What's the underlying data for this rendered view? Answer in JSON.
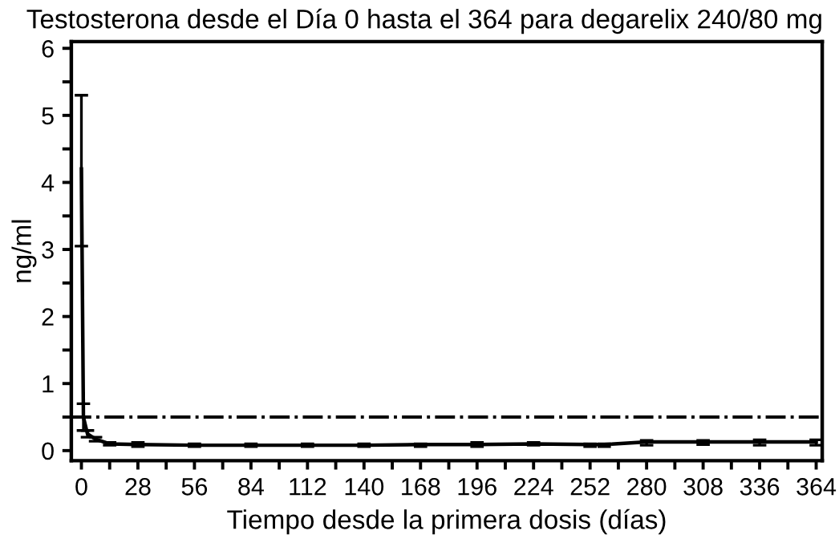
{
  "chart_data": {
    "type": "line",
    "title": "Testosterona desde el Día 0 hasta el 364 para degarelix 240/80 mg",
    "xlabel": "Tiempo desde la primera dosis (días)",
    "ylabel": "ng/ml",
    "x": [
      0,
      1,
      3,
      7,
      14,
      28,
      56,
      84,
      112,
      140,
      168,
      196,
      224,
      252,
      259,
      280,
      308,
      336,
      364
    ],
    "series": [
      {
        "color": "#000000",
        "values": [
          4.2,
          0.5,
          0.25,
          0.17,
          0.1,
          0.09,
          0.08,
          0.08,
          0.08,
          0.08,
          0.09,
          0.09,
          0.1,
          0.09,
          0.09,
          0.13,
          0.13,
          0.13,
          0.13
        ],
        "errors": [
          [
            3.05,
            5.3
          ],
          [
            0.3,
            0.7
          ],
          [
            0.2,
            0.3
          ],
          [
            0.14,
            0.2
          ],
          [
            0.08,
            0.12
          ],
          [
            0.06,
            0.12
          ],
          [
            0.06,
            0.1
          ],
          [
            0.06,
            0.1
          ],
          [
            0.06,
            0.1
          ],
          [
            0.06,
            0.1
          ],
          [
            0.06,
            0.1
          ],
          [
            0.06,
            0.12
          ],
          [
            0.08,
            0.12
          ],
          [
            0.06,
            0.1
          ],
          [
            0.06,
            0.1
          ],
          [
            0.08,
            0.15
          ],
          [
            0.09,
            0.15
          ],
          [
            0.08,
            0.16
          ],
          [
            0.08,
            0.16
          ]
        ]
      }
    ],
    "xlim": [
      -5,
      367
    ],
    "ylim": [
      -0.15,
      6.1
    ],
    "xticks": [
      0,
      {
        "value": 14,
        "label": null
      },
      28,
      {
        "value": 42,
        "label": null
      },
      56,
      {
        "value": 70,
        "label": null
      },
      84,
      {
        "value": 98,
        "label": null
      },
      112,
      {
        "value": 126,
        "label": null
      },
      140,
      {
        "value": 154,
        "label": null
      },
      168,
      {
        "value": 182,
        "label": null
      },
      196,
      {
        "value": 210,
        "label": null
      },
      224,
      {
        "value": 238,
        "label": null
      },
      252,
      {
        "value": 266,
        "label": null
      },
      280,
      {
        "value": 294,
        "label": null
      },
      308,
      {
        "value": 322,
        "label": null
      },
      336,
      {
        "value": 350,
        "label": null
      },
      364
    ],
    "yticks": [
      0,
      {
        "value": 0.5,
        "label": null
      },
      1,
      {
        "value": 1.5,
        "label": null
      },
      2,
      {
        "value": 2.5,
        "label": null
      },
      3,
      {
        "value": 3.5,
        "label": null
      },
      4,
      {
        "value": 4.5,
        "label": null
      },
      5,
      {
        "value": 5.5,
        "label": null
      },
      6
    ],
    "ref_lines": [
      {
        "axis": "y",
        "value": 0.5,
        "color": "#000000",
        "line_style": "dashdot"
      }
    ],
    "grid": false,
    "marker": "none",
    "line_style": "solid"
  }
}
